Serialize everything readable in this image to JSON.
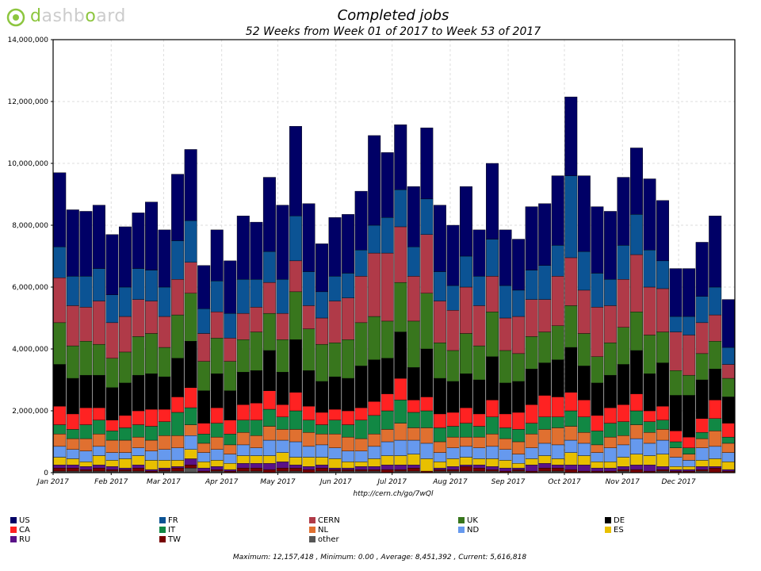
{
  "logo": {
    "brand_part1": "d",
    "brand_part2": "ashb",
    "brand_part3": "o",
    "brand_part4": "ard"
  },
  "title": "Completed jobs",
  "subtitle": "52 Weeks from Week 01 of 2017 to Week 53 of 2017",
  "url": "http://cern.ch/go/7wQl",
  "footer": "Maximum: 12,157,418 , Minimum: 0.00 , Average: 8,451,392 , Current: 5,616,818",
  "chart_data": {
    "type": "bar",
    "stacked": true,
    "ylim": [
      0,
      14000000
    ],
    "y_ticks": [
      "0",
      "2,000,000",
      "4,000,000",
      "6,000,000",
      "8,000,000",
      "10,000,000",
      "12,000,000",
      "14,000,000"
    ],
    "x_tick_labels": [
      "Jan 2017",
      "Feb 2017",
      "Mar 2017",
      "Apr 2017",
      "May 2017",
      "Jun 2017",
      "Jul 2017",
      "Aug 2017",
      "Sep 2017",
      "Oct 2017",
      "Nov 2017",
      "Dec 2017"
    ],
    "x_tick_weeks": [
      0,
      4.43,
      8.43,
      12.86,
      17.14,
      21.57,
      25.86,
      30.29,
      34.71,
      39,
      43.43,
      47.71
    ],
    "grid": true,
    "legend_placement": "bottom",
    "series": [
      {
        "name": "US",
        "color": "#000066"
      },
      {
        "name": "FR",
        "color": "#0b5394"
      },
      {
        "name": "CERN",
        "color": "#b03a48"
      },
      {
        "name": "UK",
        "color": "#38761d"
      },
      {
        "name": "DE",
        "color": "#000000"
      },
      {
        "name": "CA",
        "color": "#ff2222"
      },
      {
        "name": "IT",
        "color": "#118844"
      },
      {
        "name": "NL",
        "color": "#e07030"
      },
      {
        "name": "ND",
        "color": "#6699ee"
      },
      {
        "name": "ES",
        "color": "#e8c000"
      },
      {
        "name": "RU",
        "color": "#5a1188"
      },
      {
        "name": "TW",
        "color": "#770000"
      },
      {
        "name": "other",
        "color": "#555555"
      }
    ],
    "weeks": [
      {
        "total": 9700000,
        "seg": [
          2400000,
          1000000,
          1450000,
          1350000,
          1350000,
          600000,
          300000,
          400000,
          350000,
          250000,
          100000,
          100000,
          50000
        ]
      },
      {
        "total": 8600000,
        "seg": [
          2150000,
          950000,
          1300000,
          1050000,
          1150000,
          500000,
          300000,
          350000,
          300000,
          200000,
          100000,
          100000,
          50000
        ]
      },
      {
        "total": 8400000,
        "seg": [
          2100000,
          1000000,
          1100000,
          1100000,
          1050000,
          550000,
          450000,
          400000,
          350000,
          150000,
          100000,
          50000,
          50000
        ]
      },
      {
        "total": 8650000,
        "seg": [
          2050000,
          1050000,
          1400000,
          1000000,
          1050000,
          400000,
          450000,
          400000,
          300000,
          300000,
          100000,
          100000,
          50000
        ]
      },
      {
        "total": 7700000,
        "seg": [
          1950000,
          900000,
          1150000,
          950000,
          1050000,
          350000,
          300000,
          400000,
          250000,
          200000,
          100000,
          50000,
          50000
        ]
      },
      {
        "total": 8100000,
        "seg": [
          1950000,
          950000,
          1150000,
          1000000,
          1050000,
          400000,
          400000,
          400000,
          200000,
          300000,
          50000,
          50000,
          50000
        ]
      },
      {
        "total": 8400000,
        "seg": [
          1800000,
          1000000,
          1200000,
          1250000,
          1150000,
          450000,
          400000,
          350000,
          250000,
          300000,
          100000,
          100000,
          50000
        ]
      },
      {
        "total": 8750000,
        "seg": [
          2200000,
          1000000,
          1050000,
          1300000,
          1150000,
          550000,
          450000,
          350000,
          300000,
          300000,
          50000,
          50000,
          0
        ]
      },
      {
        "total": 7850000,
        "seg": [
          1850000,
          950000,
          1000000,
          950000,
          1050000,
          400000,
          450000,
          450000,
          350000,
          250000,
          50000,
          50000,
          50000
        ]
      },
      {
        "total": 9650000,
        "seg": [
          2150000,
          1250000,
          1150000,
          1400000,
          1250000,
          500000,
          750000,
          400000,
          400000,
          200000,
          50000,
          100000,
          50000
        ]
      },
      {
        "total": 10450000,
        "seg": [
          2300000,
          1350000,
          1000000,
          1550000,
          1500000,
          650000,
          550000,
          350000,
          450000,
          300000,
          200000,
          100000,
          150000
        ]
      },
      {
        "total": 6700000,
        "seg": [
          1400000,
          800000,
          900000,
          950000,
          1050000,
          350000,
          300000,
          300000,
          300000,
          200000,
          100000,
          50000,
          0
        ]
      },
      {
        "total": 7850000,
        "seg": [
          1650000,
          1000000,
          850000,
          1150000,
          1100000,
          500000,
          450000,
          400000,
          350000,
          200000,
          100000,
          50000,
          50000
        ]
      },
      {
        "total": 6850000,
        "seg": [
          1700000,
          800000,
          750000,
          950000,
          950000,
          450000,
          350000,
          300000,
          300000,
          200000,
          50000,
          50000,
          0
        ]
      },
      {
        "total": 8300000,
        "seg": [
          2050000,
          1100000,
          850000,
          1050000,
          1050000,
          500000,
          400000,
          400000,
          350000,
          250000,
          150000,
          100000,
          50000
        ]
      },
      {
        "total": 8100000,
        "seg": [
          1850000,
          900000,
          800000,
          1250000,
          1050000,
          550000,
          500000,
          400000,
          250000,
          250000,
          150000,
          100000,
          50000
        ]
      },
      {
        "total": 9550000,
        "seg": [
          2400000,
          1000000,
          1000000,
          1200000,
          1300000,
          600000,
          550000,
          450000,
          500000,
          250000,
          200000,
          100000,
          0
        ]
      },
      {
        "total": 8650000,
        "seg": [
          2400000,
          1100000,
          850000,
          1050000,
          1050000,
          400000,
          400000,
          350000,
          400000,
          300000,
          200000,
          100000,
          50000
        ]
      },
      {
        "total": 11200000,
        "seg": [
          2900000,
          1450000,
          1000000,
          1550000,
          1700000,
          600000,
          600000,
          400000,
          500000,
          250000,
          100000,
          100000,
          50000
        ]
      },
      {
        "total": 8650000,
        "seg": [
          2200000,
          1100000,
          750000,
          1350000,
          1150000,
          450000,
          400000,
          450000,
          350000,
          300000,
          100000,
          100000,
          0
        ]
      },
      {
        "total": 7750000,
        "seg": [
          1550000,
          850000,
          850000,
          1200000,
          1000000,
          400000,
          300000,
          350000,
          400000,
          250000,
          100000,
          100000,
          50000
        ]
      },
      {
        "total": 8250000,
        "seg": [
          1900000,
          800000,
          1350000,
          1100000,
          1050000,
          350000,
          450000,
          450000,
          350000,
          300000,
          50000,
          50000,
          50000
        ]
      },
      {
        "total": 8300000,
        "seg": [
          1900000,
          800000,
          1350000,
          1250000,
          1050000,
          450000,
          400000,
          450000,
          350000,
          200000,
          50000,
          50000,
          50000
        ]
      },
      {
        "total": 8800000,
        "seg": [
          1900000,
          850000,
          1500000,
          1400000,
          1350000,
          400000,
          600000,
          400000,
          350000,
          150000,
          100000,
          50000,
          50000
        ]
      },
      {
        "total": 10400000,
        "seg": [
          2900000,
          900000,
          2050000,
          1400000,
          1350000,
          450000,
          600000,
          400000,
          400000,
          250000,
          100000,
          50000,
          50000
        ]
      },
      {
        "total": 10350000,
        "seg": [
          2100000,
          1150000,
          2200000,
          1200000,
          1150000,
          550000,
          600000,
          400000,
          450000,
          300000,
          150000,
          100000,
          0
        ]
      },
      {
        "total": 11250000,
        "seg": [
          2100000,
          1200000,
          1800000,
          1600000,
          1500000,
          700000,
          750000,
          550000,
          500000,
          300000,
          150000,
          50000,
          50000
        ]
      },
      {
        "total": 9250000,
        "seg": [
          1950000,
          950000,
          1450000,
          1500000,
          1050000,
          400000,
          500000,
          400000,
          450000,
          350000,
          100000,
          100000,
          50000
        ]
      },
      {
        "total": 11150000,
        "seg": [
          2300000,
          1150000,
          1900000,
          1800000,
          1550000,
          450000,
          550000,
          500000,
          500000,
          400000,
          0,
          50000,
          0
        ]
      },
      {
        "total": 8650000,
        "seg": [
          2150000,
          950000,
          1350000,
          1150000,
          1150000,
          450000,
          450000,
          350000,
          300000,
          200000,
          50000,
          50000,
          50000
        ]
      },
      {
        "total": 7950000,
        "seg": [
          1950000,
          800000,
          1300000,
          1000000,
          1000000,
          450000,
          350000,
          350000,
          350000,
          250000,
          100000,
          50000,
          50000
        ]
      },
      {
        "total": 9250000,
        "seg": [
          2250000,
          1000000,
          1500000,
          1300000,
          1100000,
          500000,
          450000,
          300000,
          350000,
          250000,
          50000,
          150000,
          50000
        ]
      },
      {
        "total": 7750000,
        "seg": [
          1500000,
          950000,
          1300000,
          1100000,
          1100000,
          400000,
          350000,
          350000,
          350000,
          200000,
          100000,
          100000,
          50000
        ]
      },
      {
        "total": 9950000,
        "seg": [
          2450000,
          1200000,
          1150000,
          1450000,
          1400000,
          550000,
          550000,
          400000,
          400000,
          250000,
          100000,
          50000,
          50000
        ]
      },
      {
        "total": 7850000,
        "seg": [
          1800000,
          1050000,
          1050000,
          1050000,
          1000000,
          450000,
          350000,
          350000,
          350000,
          250000,
          100000,
          50000,
          0
        ]
      },
      {
        "total": 7550000,
        "seg": [
          1650000,
          850000,
          1200000,
          900000,
          1000000,
          550000,
          400000,
          400000,
          300000,
          150000,
          50000,
          50000,
          50000
        ]
      },
      {
        "total": 8600000,
        "seg": [
          2050000,
          950000,
          1200000,
          1050000,
          1150000,
          600000,
          350000,
          450000,
          350000,
          200000,
          200000,
          50000,
          0
        ]
      },
      {
        "total": 8700000,
        "seg": [
          2000000,
          1100000,
          1050000,
          1000000,
          1050000,
          700000,
          400000,
          450000,
          400000,
          250000,
          150000,
          100000,
          50000
        ]
      },
      {
        "total": 9600000,
        "seg": [
          2250000,
          1000000,
          1600000,
          1100000,
          1200000,
          650000,
          350000,
          550000,
          450000,
          200000,
          100000,
          100000,
          50000
        ]
      },
      {
        "total": 12150000,
        "seg": [
          2550000,
          2650000,
          1550000,
          1350000,
          1450000,
          600000,
          500000,
          450000,
          400000,
          400000,
          150000,
          100000,
          0
        ]
      },
      {
        "total": 9750000,
        "seg": [
          2450000,
          1250000,
          1400000,
          1050000,
          1100000,
          550000,
          500000,
          350000,
          400000,
          300000,
          200000,
          50000,
          0
        ]
      },
      {
        "total": 8600000,
        "seg": [
          2150000,
          1100000,
          1600000,
          850000,
          1050000,
          500000,
          450000,
          250000,
          300000,
          200000,
          100000,
          50000,
          0
        ]
      },
      {
        "total": 8450000,
        "seg": [
          2200000,
          850000,
          1200000,
          1050000,
          1050000,
          500000,
          450000,
          350000,
          450000,
          200000,
          100000,
          50000,
          0
        ]
      },
      {
        "total": 9500000,
        "seg": [
          2200000,
          1100000,
          1550000,
          1200000,
          1300000,
          550000,
          450000,
          300000,
          400000,
          300000,
          100000,
          50000,
          50000
        ]
      },
      {
        "total": 10450000,
        "seg": [
          2150000,
          1300000,
          1850000,
          1250000,
          1400000,
          550000,
          450000,
          450000,
          500000,
          350000,
          150000,
          100000,
          0
        ]
      },
      {
        "total": 9500000,
        "seg": [
          2300000,
          1200000,
          1550000,
          1250000,
          1200000,
          350000,
          350000,
          350000,
          400000,
          300000,
          200000,
          50000,
          0
        ]
      },
      {
        "total": 8800000,
        "seg": [
          1950000,
          900000,
          1400000,
          1000000,
          1400000,
          450000,
          300000,
          350000,
          450000,
          400000,
          100000,
          50000,
          50000
        ]
      },
      {
        "total": 6600000,
        "seg": [
          1550000,
          500000,
          1250000,
          800000,
          1150000,
          350000,
          200000,
          300000,
          300000,
          100000,
          50000,
          50000,
          0
        ]
      },
      {
        "total": 6550000,
        "seg": [
          1550000,
          600000,
          1300000,
          650000,
          1350000,
          350000,
          200000,
          200000,
          200000,
          100000,
          50000,
          50000,
          0
        ]
      },
      {
        "total": 7400000,
        "seg": [
          1750000,
          850000,
          1000000,
          850000,
          1250000,
          450000,
          200000,
          300000,
          400000,
          200000,
          100000,
          50000,
          50000
        ]
      },
      {
        "total": 8300000,
        "seg": [
          2300000,
          900000,
          850000,
          900000,
          1000000,
          600000,
          400000,
          500000,
          400000,
          250000,
          50000,
          150000,
          0
        ]
      },
      {
        "total": 5600000,
        "seg": [
          1550000,
          550000,
          450000,
          600000,
          850000,
          450000,
          200000,
          300000,
          300000,
          250000,
          50000,
          50000,
          0
        ]
      }
    ]
  }
}
